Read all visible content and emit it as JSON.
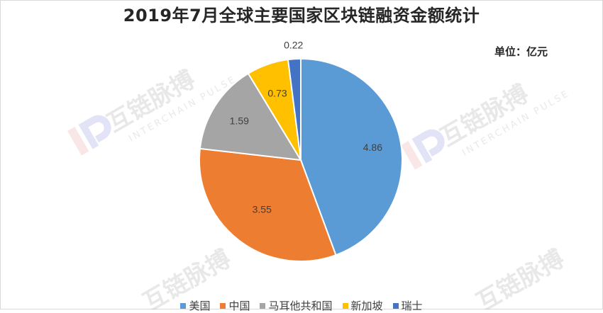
{
  "page": {
    "title": "2019年7月全球主要国家区块链融资金额统计",
    "unit_label": "单位：亿元"
  },
  "watermark": {
    "brand_cn": "互链脉搏",
    "brand_en": "INTERCHAIN PULSE"
  },
  "colors": {
    "美国": "#5b9bd5",
    "中国": "#ed7d31",
    "马耳他共和国": "#a5a5a5",
    "新加坡": "#ffc000",
    "瑞士": "#4472c4"
  },
  "chart_data": {
    "type": "pie",
    "title": "2019年7月全球主要国家区块链融资金额统计",
    "unit": "亿元",
    "categories": [
      "美国",
      "中国",
      "马耳他共和国",
      "新加坡",
      "瑞士"
    ],
    "values": [
      4.86,
      3.55,
      1.59,
      0.73,
      0.22
    ],
    "data_labels": [
      "4.86",
      "3.55",
      "1.59",
      "0.73",
      "0.22"
    ],
    "start_angle": "12 o'clock",
    "direction": "clockwise",
    "legend_position": "bottom"
  }
}
